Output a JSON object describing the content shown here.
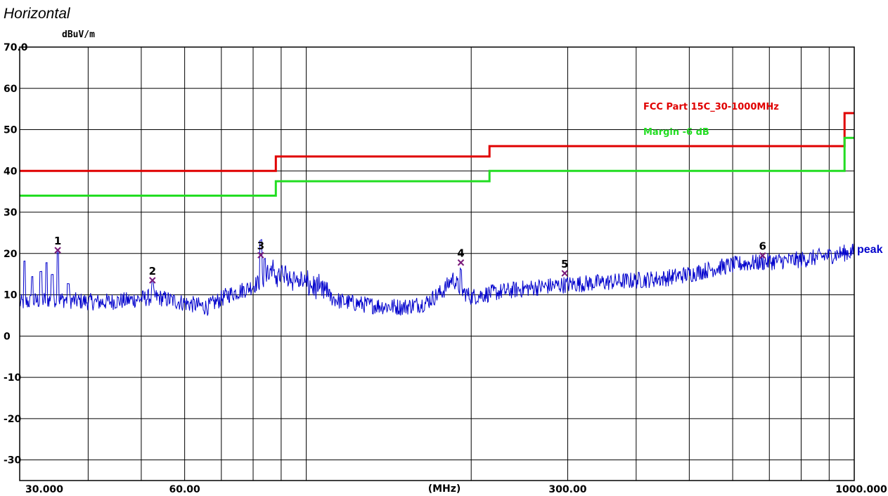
{
  "chart_data": {
    "type": "line",
    "title": "Horizontal",
    "ylabel": "dBuV/m",
    "xlabel": "(MHz)",
    "x_scale": "log",
    "xlim": [
      30,
      1000
    ],
    "ylim": [
      -35,
      70
    ],
    "grid": true,
    "y_ticks": [
      {
        "value": 70,
        "label": "70.0"
      },
      {
        "value": 60,
        "label": "60"
      },
      {
        "value": 50,
        "label": "50"
      },
      {
        "value": 40,
        "label": "40"
      },
      {
        "value": 30,
        "label": "30"
      },
      {
        "value": 20,
        "label": "20"
      },
      {
        "value": 10,
        "label": "10"
      },
      {
        "value": 0,
        "label": "0"
      },
      {
        "value": -10,
        "label": "-10"
      },
      {
        "value": -20,
        "label": "-20"
      },
      {
        "value": -30,
        "label": "-30"
      }
    ],
    "x_tick_labels": [
      {
        "value": 30,
        "label": "30.000"
      },
      {
        "value": 60,
        "label": "60.00"
      },
      {
        "value": 300,
        "label": "300.00"
      },
      {
        "value": 1000,
        "label": "1000.000"
      }
    ],
    "limit_lines": [
      {
        "name": "FCC Part 15C_30-1000MHz",
        "color": "#e00000",
        "points": [
          [
            30,
            40
          ],
          [
            88,
            40
          ],
          [
            88,
            43.5
          ],
          [
            216,
            43.5
          ],
          [
            216,
            46
          ],
          [
            960,
            46
          ],
          [
            960,
            54
          ],
          [
            1000,
            54
          ]
        ]
      },
      {
        "name": "Margin -6 dB",
        "color": "#22dd22",
        "points": [
          [
            30,
            34
          ],
          [
            88,
            34
          ],
          [
            88,
            37.5
          ],
          [
            216,
            37.5
          ],
          [
            216,
            40
          ],
          [
            960,
            40
          ],
          [
            960,
            48
          ],
          [
            1000,
            48
          ]
        ]
      }
    ],
    "series": [
      {
        "name": "peak",
        "color": "#0000cc",
        "x": [
          30,
          32,
          35,
          38,
          42,
          47,
          53,
          60,
          66,
          72,
          78,
          82,
          86,
          92,
          100,
          115,
          130,
          150,
          165,
          178,
          185,
          192,
          200,
          220,
          250,
          300,
          350,
          400,
          450,
          500,
          560,
          620,
          700,
          800,
          900,
          1000
        ],
        "values": [
          8,
          8.5,
          9,
          8.5,
          8.2,
          8.6,
          9.5,
          8,
          7,
          10,
          11.5,
          13,
          14.5,
          14,
          12,
          8.5,
          7.5,
          7,
          8,
          11,
          14,
          11,
          9.5,
          10.5,
          11.5,
          12.5,
          13,
          13.5,
          14,
          15,
          16.5,
          17.5,
          18,
          18.5,
          19.5,
          20.5
        ]
      }
    ],
    "markers": [
      {
        "label": "1",
        "x": 35.2,
        "y": 20.8
      },
      {
        "label": "2",
        "x": 52.4,
        "y": 13.5
      },
      {
        "label": "3",
        "x": 82.6,
        "y": 19.6
      },
      {
        "label": "4",
        "x": 191.5,
        "y": 17.8
      },
      {
        "label": "5",
        "x": 296.3,
        "y": 15.2
      },
      {
        "label": "6",
        "x": 680.5,
        "y": 19.5
      }
    ]
  }
}
